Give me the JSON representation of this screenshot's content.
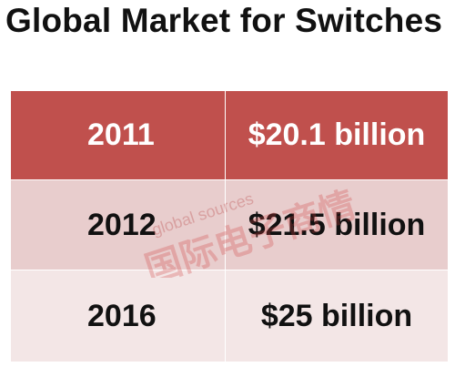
{
  "title": "Global Market for Switches",
  "table": {
    "rows": [
      {
        "year": "2011",
        "value": "$20.1 billion"
      },
      {
        "year": "2012",
        "value": "$21.5 billion"
      },
      {
        "year": "2016",
        "value": "$25 billion"
      }
    ]
  },
  "watermark": {
    "line1": "global sources",
    "line2": "国际电子商情"
  },
  "colors": {
    "header_bg": "#c0504d",
    "row2_bg": "#e8cdcd",
    "row3_bg": "#f3e6e6"
  }
}
